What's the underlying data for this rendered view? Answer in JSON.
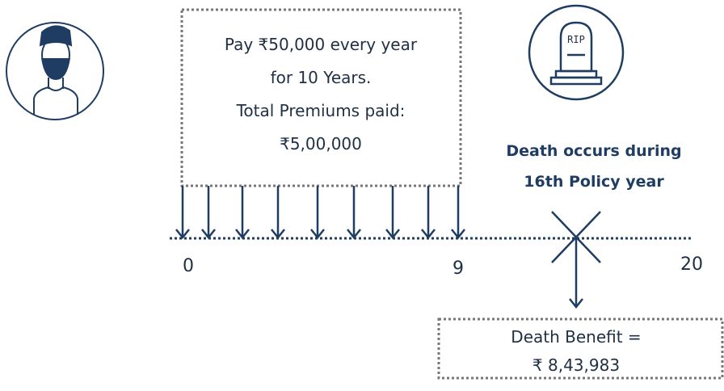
{
  "premium_box": {
    "lines": [
      "Pay ₹50,000 every year",
      "for 10 Years.",
      "Total Premiums paid:",
      "₹5,00,000"
    ]
  },
  "timeline": {
    "labels": [
      "0",
      "9",
      "20"
    ]
  },
  "death_note": {
    "lines": [
      "Death occurs during",
      "16th Policy year"
    ]
  },
  "tombstone": {
    "label": "RIP"
  },
  "benefit_box": {
    "lines": [
      "Death Benefit =",
      "₹ 8,43,983"
    ]
  }
}
